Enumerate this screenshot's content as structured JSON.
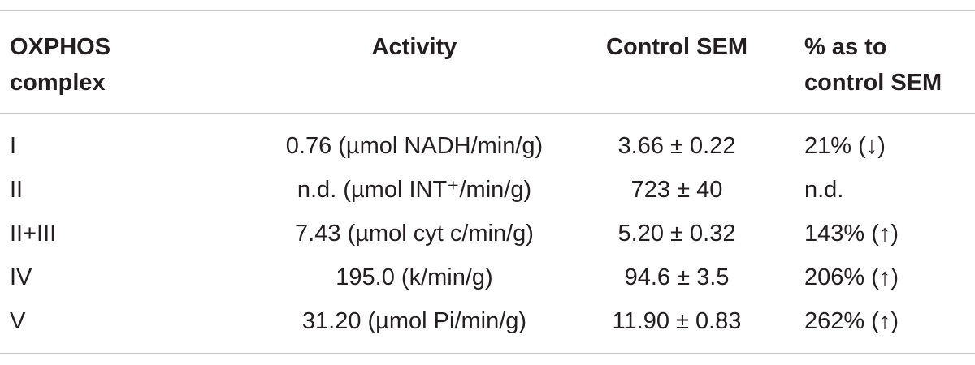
{
  "table": {
    "headers": {
      "complex": "OXPHOS\ncomplex",
      "activity": "Activity",
      "control": "Control SEM",
      "percent": "% as to\ncontrol SEM"
    },
    "rows": [
      {
        "complex": "I",
        "activity": "0.76 (µmol NADH/min/g)",
        "control": "3.66 ± 0.22",
        "percent": "21% (↓)"
      },
      {
        "complex": "II",
        "activity": "n.d. (µmol INT⁺/min/g)",
        "control": "723 ± 40",
        "percent": "n.d."
      },
      {
        "complex": "II+III",
        "activity": "7.43 (µmol cyt c/min/g)",
        "control": "5.20 ± 0.32",
        "percent": "143% (↑)"
      },
      {
        "complex": "IV",
        "activity": "195.0 (k/min/g)",
        "control": "94.6 ± 3.5",
        "percent": "206% (↑)"
      },
      {
        "complex": "V",
        "activity": "31.20 (µmol Pi/min/g)",
        "control": "11.90 ± 0.83",
        "percent": "262% (↑)"
      }
    ]
  }
}
